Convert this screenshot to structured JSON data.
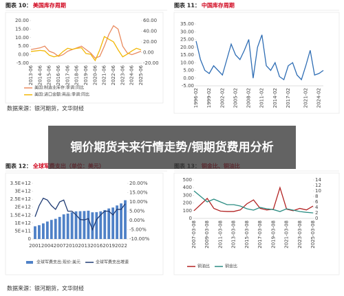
{
  "overlay_title": "铜价期货未来行情走势/铜期货费用分析",
  "chart_data": [
    {
      "type": "line",
      "label": "图表 10：",
      "title": "美国库存周期",
      "source": "数据来源：银河期货，文华财经",
      "categories": [
        "2013-06",
        null,
        "2014-06",
        null,
        "2015-06",
        null,
        "2016-06",
        null,
        "2017-06",
        null,
        "2018-06",
        null,
        "2019-06",
        null,
        "2020-06",
        null,
        "2021-06",
        null,
        "2022-06",
        null,
        "2023-06",
        null,
        "2024-06",
        null,
        "2025-06"
      ],
      "series": [
        {
          "name": "美国:制造业库存:季调:同比",
          "color": "#ea8a5e",
          "values": [
            3,
            3.5,
            4,
            5,
            2,
            1,
            -1,
            0,
            2,
            3,
            4,
            5,
            3,
            1,
            -2,
            -1,
            5,
            12,
            17,
            15,
            5,
            1,
            0,
            1,
            2
          ]
        },
        {
          "name": "美国:进口金额:商品:季调:同比",
          "color": "#f2b705",
          "axis": "y2",
          "values": [
            2,
            3,
            4,
            3,
            -5,
            -8,
            -6,
            2,
            8,
            6,
            8,
            9,
            -2,
            -3,
            -15,
            5,
            30,
            25,
            20,
            5,
            -8,
            -3,
            3,
            8,
            5
          ]
        }
      ],
      "ylim": [
        -5,
        20
      ],
      "yticks": [
        {
          "value": -5,
          "label": "-5.00"
        },
        {
          "value": 0,
          "label": "0.00"
        },
        {
          "value": 5,
          "label": "5.00"
        },
        {
          "value": 10,
          "label": "10.00"
        },
        {
          "value": 15,
          "label": "15.00"
        },
        {
          "value": 20,
          "label": "20.00"
        }
      ],
      "y2lim": [
        -20,
        60
      ],
      "y2ticks": [
        {
          "value": -20,
          "label": "-20.00"
        },
        {
          "value": 0,
          "label": "0.00"
        },
        {
          "value": 20,
          "label": "20.00"
        },
        {
          "value": 40,
          "label": "40.00"
        },
        {
          "value": 60,
          "label": "60.00"
        }
      ],
      "legend": "bottom"
    },
    {
      "type": "line",
      "label": "图表 11：",
      "title": "中国库存周期",
      "categories": [
        "1996-02",
        null,
        null,
        "1999-02",
        null,
        null,
        "2002-02",
        null,
        null,
        "2005-02",
        null,
        null,
        "2008-02",
        null,
        null,
        "2011-02",
        null,
        null,
        "2014-02",
        null,
        null,
        "2017-02",
        null,
        null,
        null,
        "2021-02",
        null,
        null,
        "2024-02",
        null
      ],
      "series": [
        {
          "name": "中国库存周期",
          "color": "#2e6db4",
          "values": [
            24,
            12,
            5,
            3,
            8,
            5,
            2,
            12,
            22,
            15,
            12,
            18,
            25,
            0,
            20,
            28,
            8,
            5,
            10,
            1,
            -1,
            8,
            10,
            2,
            -1,
            8,
            18,
            2,
            3,
            5
          ]
        }
      ],
      "ylim": [
        -5,
        35
      ],
      "yticks": [
        {
          "value": -5,
          "label": "-5.00"
        },
        {
          "value": 0,
          "label": "0.00"
        },
        {
          "value": 5,
          "label": "5.00"
        },
        {
          "value": 10,
          "label": "10.00"
        },
        {
          "value": 15,
          "label": "15.00"
        },
        {
          "value": 20,
          "label": "20.00"
        },
        {
          "value": 25,
          "label": "25.00"
        },
        {
          "value": 30,
          "label": "30.00"
        },
        {
          "value": 35,
          "label": "35.00"
        }
      ]
    },
    {
      "type": "bar",
      "label": "图表 12：",
      "title": "全球军费支出（单位：美元）",
      "source": "数据来源：银河期货，文华财经",
      "categories": [
        "2001",
        null,
        null,
        "2004",
        null,
        null,
        "2007",
        null,
        null,
        "2010",
        null,
        null,
        "2013",
        null,
        null,
        "2016",
        null,
        null,
        "2019",
        null,
        null,
        "2022",
        null
      ],
      "series": [
        {
          "name": "全球军费支出:现价:美元",
          "color": "#4f81c7",
          "type": "bar",
          "values": [
            800000000000.0,
            870000000000.0,
            980000000000.0,
            1100000000000.0,
            1200000000000.0,
            1270000000000.0,
            1390000000000.0,
            1550000000000.0,
            1600000000000.0,
            1680000000000.0,
            1740000000000.0,
            1750000000000.0,
            1760000000000.0,
            1780000000000.0,
            1680000000000.0,
            1690000000000.0,
            1740000000000.0,
            1820000000000.0,
            1920000000000.0,
            1980000000000.0,
            2110000000000.0,
            2240000000000.0,
            2440000000000.0
          ]
        },
        {
          "name": "全球军费支出增速",
          "color": "#1f3b73",
          "type": "line",
          "axis": "y2",
          "values": [
            2,
            8,
            12,
            11,
            8,
            6,
            10,
            11,
            5,
            5,
            3,
            0.5,
            0.3,
            1,
            -5,
            0.5,
            3,
            5,
            5,
            3,
            6,
            6,
            9
          ]
        }
      ],
      "ylim": [
        0,
        3500000000000.0
      ],
      "yticks": [
        0,
        {
          "value": 500000000000.0,
          "label": "5E+11"
        },
        {
          "value": 1000000000000.0,
          "label": "1E+12"
        },
        {
          "value": 1500000000000.0,
          "label": "1.5E+12"
        },
        {
          "value": 2000000000000.0,
          "label": "2E+12"
        },
        {
          "value": 2500000000000.0,
          "label": "2.5E+12"
        },
        {
          "value": 3000000000000.0,
          "label": "3E+12"
        },
        {
          "value": 3500000000000.0,
          "label": "3.5E+12"
        }
      ],
      "y2lim": [
        -10,
        20
      ],
      "y2ticks": [
        {
          "value": -10,
          "label": "-10.00%"
        },
        {
          "value": -5,
          "label": "-5.00%"
        },
        {
          "value": 0,
          "label": "0.00%"
        },
        {
          "value": 5,
          "label": "5.00%"
        },
        {
          "value": 10,
          "label": "10.00%"
        },
        {
          "value": 15,
          "label": "15.00%"
        },
        {
          "value": 20,
          "label": "20.00%"
        }
      ],
      "legend": "bottom"
    },
    {
      "type": "line",
      "label": "图表 13：",
      "title": "铜金比、铜油比",
      "categories": [
        "2007-03-08",
        null,
        "2009-03-08",
        null,
        "2011-03-08",
        null,
        "2013-03-08",
        null,
        "2015-03-08",
        null,
        "2017-03-08",
        null,
        "2019-03-08",
        null,
        "2021-03-08",
        null,
        "2023-03-08",
        null,
        "2025-03-08"
      ],
      "series": [
        {
          "name": "铜油比",
          "color": "#b22222",
          "values": [
            100,
            180,
            260,
            130,
            95,
            90,
            90,
            110,
            190,
            240,
            130,
            110,
            120,
            400,
            120,
            100,
            130,
            110,
            160
          ]
        },
        {
          "name": "铜金比",
          "color": "#2a8c82",
          "axis": "y2",
          "values": [
            10,
            8,
            6,
            7,
            6,
            5,
            5,
            4.5,
            3.5,
            3,
            4,
            3.5,
            3.2,
            2.5,
            3.5,
            3,
            2.5,
            2.2,
            2
          ]
        }
      ],
      "ylim": [
        0,
        500
      ],
      "yticks": [
        0,
        100,
        200,
        300,
        400,
        500
      ],
      "y2lim": [
        0,
        14
      ],
      "y2ticks": [
        0,
        2,
        4,
        6,
        8,
        10,
        12,
        14
      ],
      "legend": "bottom"
    }
  ]
}
